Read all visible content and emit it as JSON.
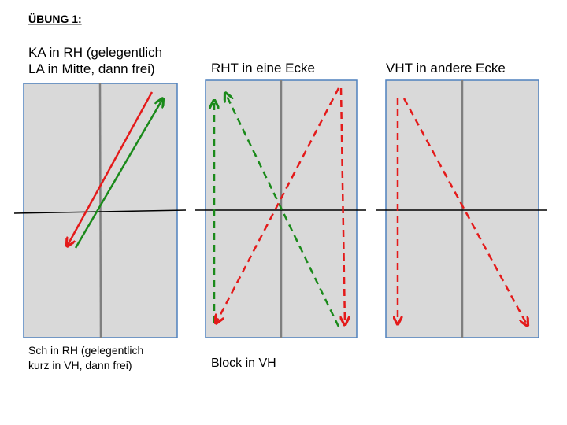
{
  "title": "ÜBUNG 1:",
  "panels": [
    {
      "heading": [
        "KA in RH (gelegentlich",
        "LA in Mitte, dann frei)"
      ],
      "caption": [
        "Sch in RH (gelegentlich",
        "kurz in VH, dann frei)"
      ]
    },
    {
      "heading": [
        "RHT in eine Ecke"
      ],
      "caption": [
        "Block in VH"
      ]
    },
    {
      "heading": [
        "VHT in andere Ecke"
      ]
    }
  ]
}
